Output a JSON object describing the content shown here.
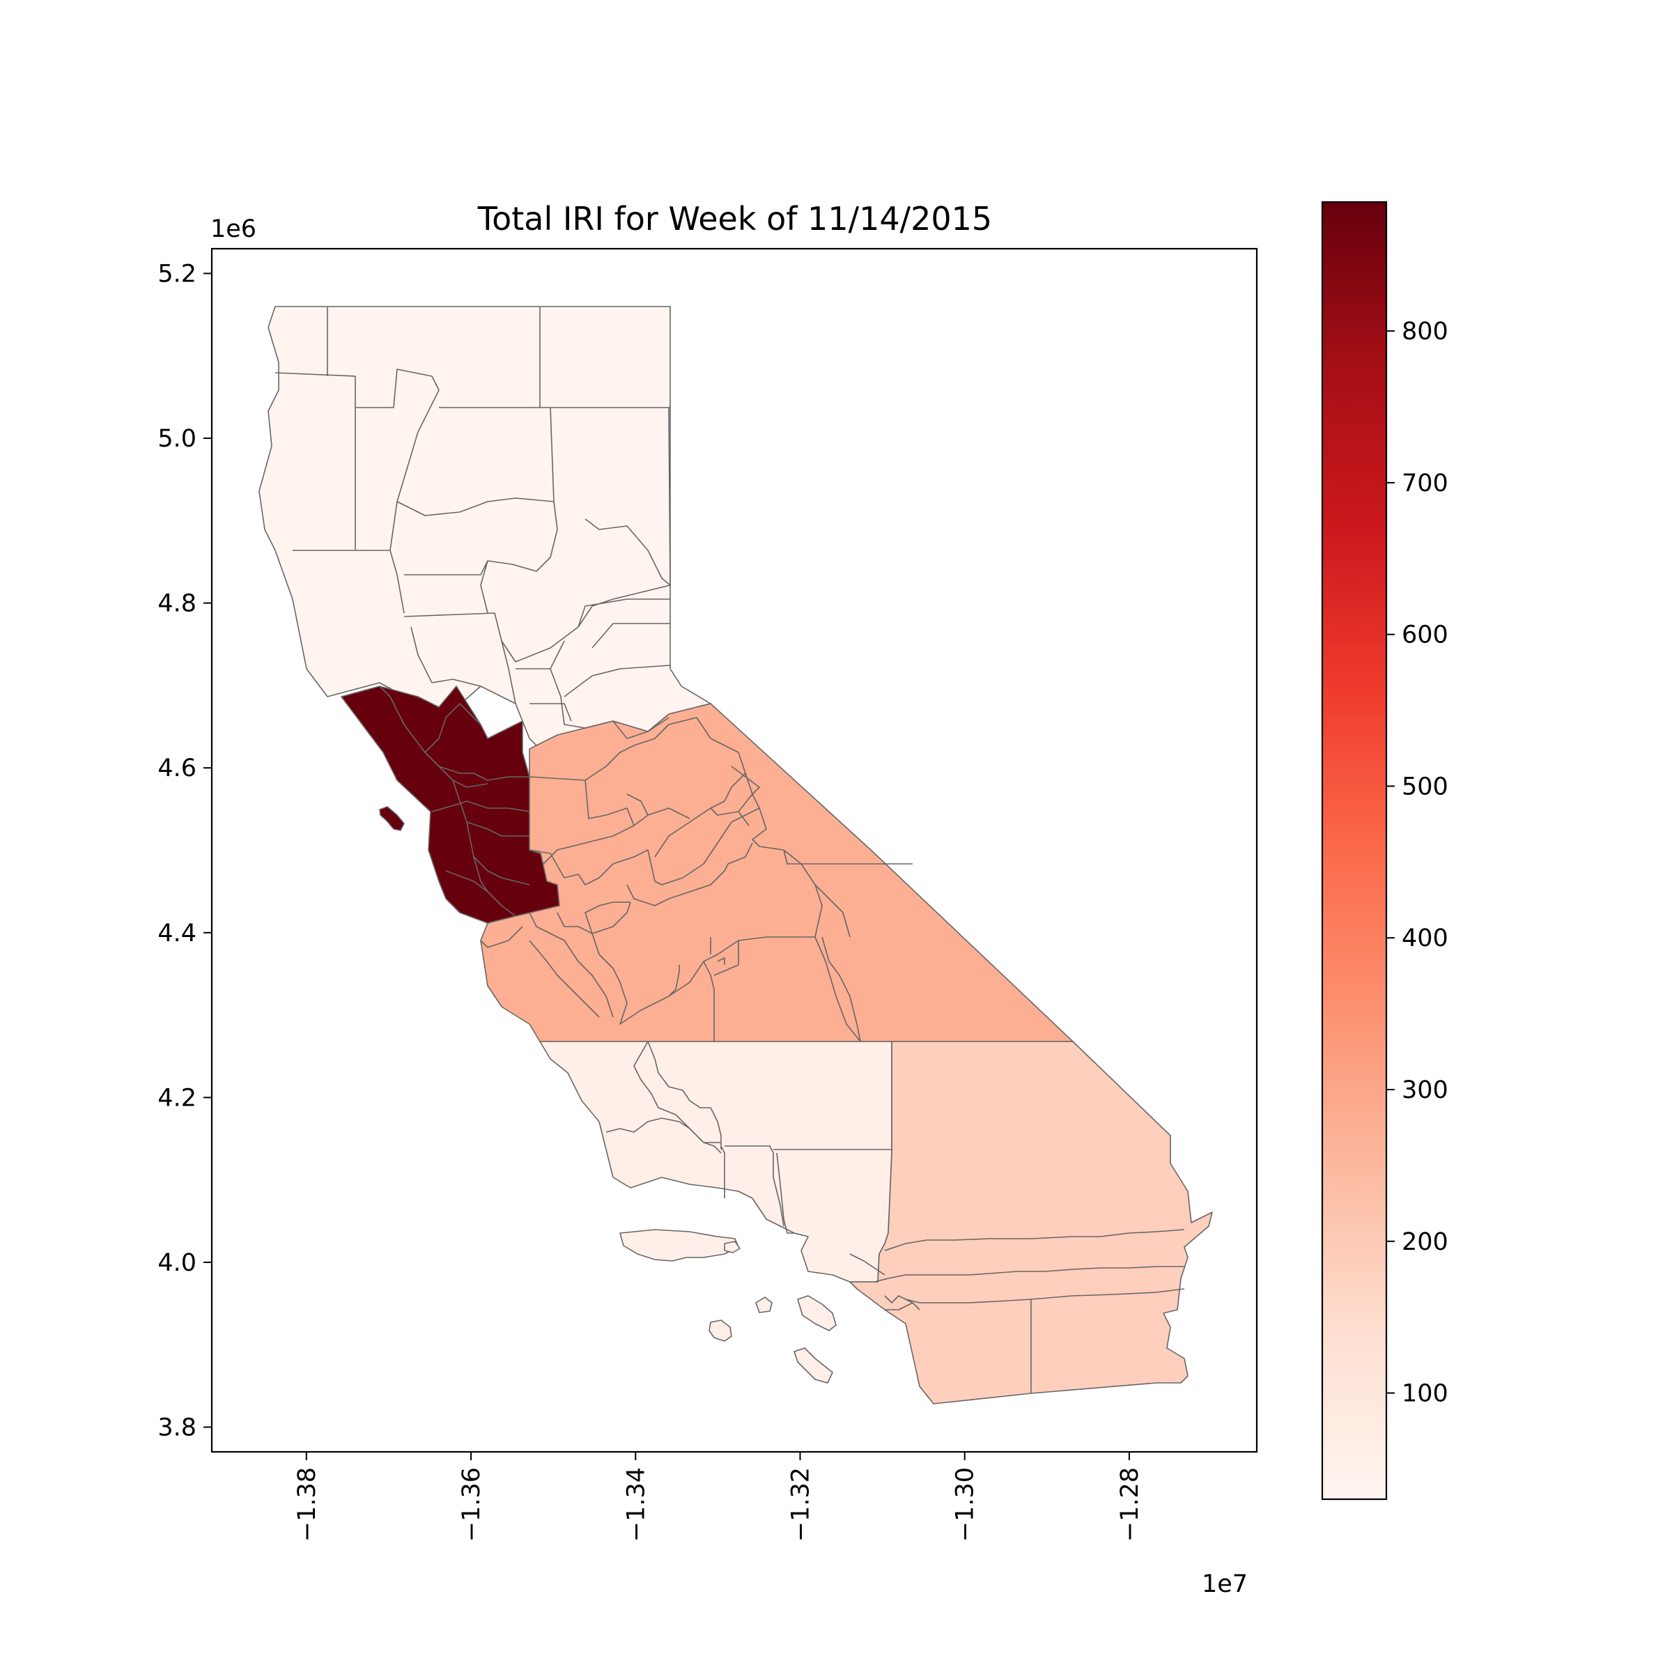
{
  "chart_data": {
    "type": "choropleth",
    "title": "Total IRI for Week of 11/14/2015",
    "x_axis": {
      "ticks": [
        "−1.38",
        "−1.36",
        "−1.34",
        "−1.32",
        "−1.30",
        "−1.28"
      ],
      "tick_values": [
        -1.38,
        -1.36,
        -1.34,
        -1.32,
        -1.3,
        -1.28
      ],
      "offset_text": "1e7",
      "range": [
        -1.3915,
        -1.2645
      ],
      "rotation": 90
    },
    "y_axis": {
      "ticks": [
        "3.8",
        "4.0",
        "4.2",
        "4.4",
        "4.6",
        "4.8",
        "5.0",
        "5.2"
      ],
      "tick_values": [
        3.8,
        4.0,
        4.2,
        4.4,
        4.6,
        4.8,
        5.0,
        5.2
      ],
      "offset_text": "1e6",
      "range": [
        3.77,
        5.23
      ]
    },
    "colorbar": {
      "cmap": "Reds",
      "range": [
        30,
        885
      ],
      "ticks": [
        "100",
        "200",
        "300",
        "400",
        "500",
        "600",
        "700",
        "800"
      ],
      "tick_values": [
        100,
        200,
        300,
        400,
        500,
        600,
        700,
        800
      ]
    },
    "regions": [
      {
        "region": "north",
        "value": 35
      },
      {
        "region": "bay_area",
        "value": 885
      },
      {
        "region": "central",
        "value": 275
      },
      {
        "region": "central_coast_south",
        "value": 60
      },
      {
        "region": "southeast",
        "value": 185
      }
    ],
    "grid": false
  }
}
